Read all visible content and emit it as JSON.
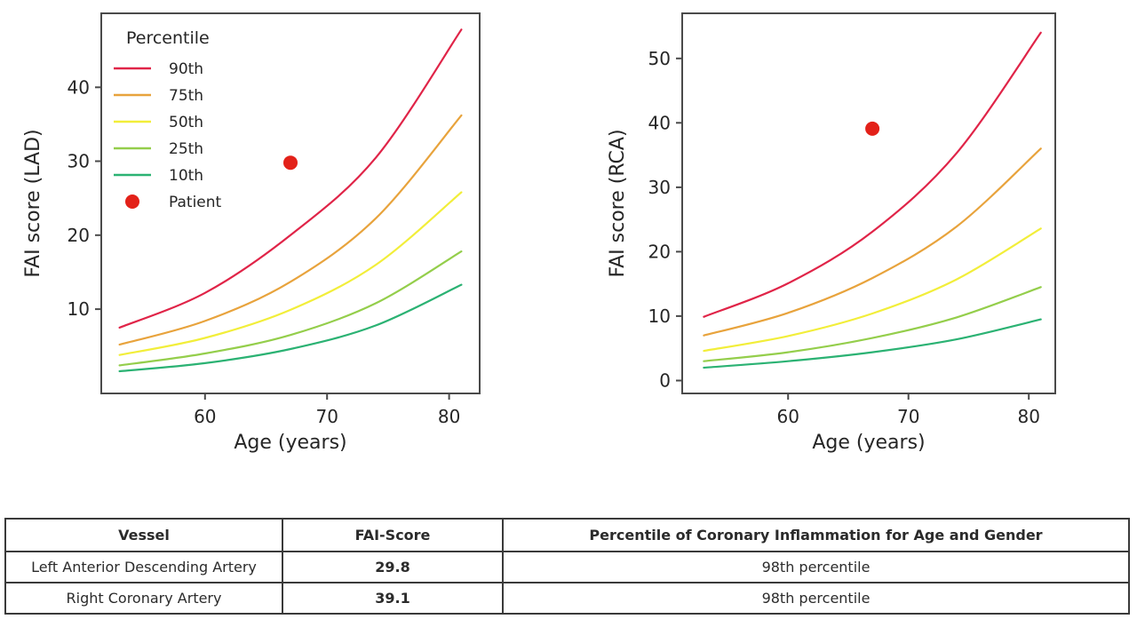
{
  "chart_data": [
    {
      "id": "lad",
      "type": "line",
      "xlabel": "Age (years)",
      "ylabel": "FAI score (LAD)",
      "xlim": [
        51.5,
        82.5
      ],
      "ylim": [
        -1.4,
        50
      ],
      "xticks": [
        60,
        70,
        80
      ],
      "yticks": [
        10,
        20,
        30,
        40
      ],
      "x": [
        53,
        60,
        67,
        74,
        81
      ],
      "series": [
        {
          "name": "90th",
          "color": "#e02448",
          "values": [
            7.5,
            12.2,
            20.0,
            30.5,
            47.8
          ]
        },
        {
          "name": "75th",
          "color": "#e8a33c",
          "values": [
            5.2,
            8.4,
            13.7,
            22.3,
            36.2
          ]
        },
        {
          "name": "50th",
          "color": "#f2ee3a",
          "values": [
            3.8,
            6.1,
            9.9,
            16.0,
            25.8
          ]
        },
        {
          "name": "25th",
          "color": "#94ce4b",
          "values": [
            2.4,
            4.0,
            6.5,
            10.8,
            17.8
          ]
        },
        {
          "name": "10th",
          "color": "#2bb273",
          "values": [
            1.6,
            2.7,
            4.6,
            7.8,
            13.3
          ]
        }
      ],
      "patient": {
        "label": "Patient",
        "color": "#e32119",
        "x": 67,
        "y": 29.8
      },
      "legend": {
        "show": true,
        "position": "upper-left",
        "title": "Percentile"
      }
    },
    {
      "id": "rca",
      "type": "line",
      "xlabel": "Age (years)",
      "ylabel": "FAI score (RCA)",
      "xlim": [
        51.2,
        82.2
      ],
      "ylim": [
        -2,
        57
      ],
      "xticks": [
        60,
        70,
        80
      ],
      "yticks": [
        0,
        10,
        20,
        30,
        40,
        50
      ],
      "x": [
        53,
        60,
        67,
        74,
        81
      ],
      "series": [
        {
          "name": "90th",
          "color": "#e02448",
          "values": [
            9.9,
            15.1,
            23.1,
            35.3,
            54.0
          ]
        },
        {
          "name": "75th",
          "color": "#e8a33c",
          "values": [
            7.0,
            10.5,
            15.9,
            23.9,
            36.0
          ]
        },
        {
          "name": "50th",
          "color": "#f2ee3a",
          "values": [
            4.6,
            6.9,
            10.4,
            15.7,
            23.6
          ]
        },
        {
          "name": "25th",
          "color": "#94ce4b",
          "values": [
            3.0,
            4.4,
            6.6,
            9.8,
            14.5
          ]
        },
        {
          "name": "10th",
          "color": "#2bb273",
          "values": [
            2.0,
            3.0,
            4.4,
            6.4,
            9.5
          ]
        }
      ],
      "patient": {
        "label": "Patient",
        "color": "#e32119",
        "x": 67,
        "y": 39.1
      },
      "legend": {
        "show": false,
        "title": "Percentile"
      }
    }
  ],
  "table": {
    "headers": [
      "Vessel",
      "FAI-Score",
      "Percentile of Coronary Inflammation for Age and Gender"
    ],
    "rows": [
      {
        "vessel": "Left Anterior Descending Artery",
        "fai_score": "29.8",
        "percentile": "98th percentile"
      },
      {
        "vessel": "Right Coronary Artery",
        "fai_score": "39.1",
        "percentile": "98th percentile"
      }
    ]
  }
}
